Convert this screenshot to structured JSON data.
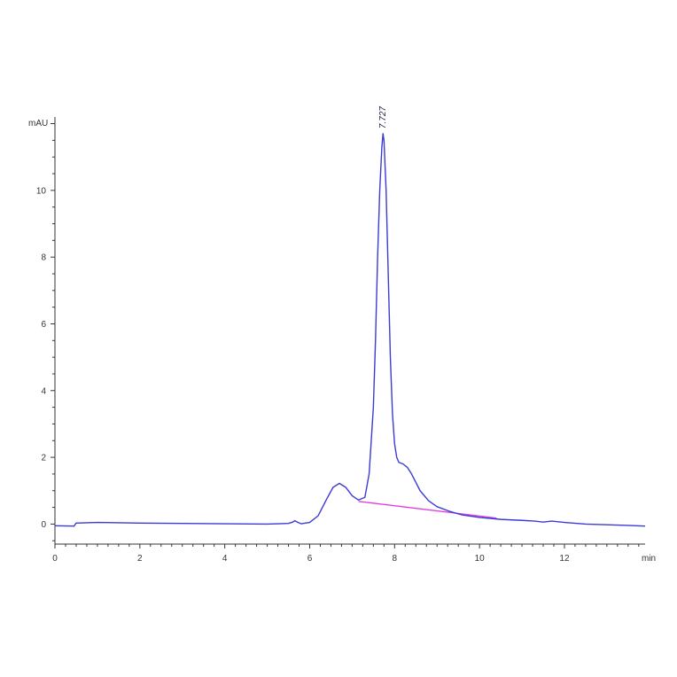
{
  "chart_data": {
    "type": "line",
    "xlabel": "min",
    "ylabel": "mAU",
    "xlim": [
      0,
      13.9
    ],
    "ylim": [
      -0.6,
      12.2
    ],
    "x_ticks": [
      0,
      2,
      4,
      6,
      8,
      10,
      12
    ],
    "y_ticks": [
      0,
      2,
      4,
      6,
      8,
      10
    ],
    "grid": false,
    "peak_annotation": {
      "label": "7.727",
      "x": 7.727,
      "y": 11.8
    },
    "series": [
      {
        "color": "#3b3bd6",
        "x": [
          0,
          0.45,
          0.5,
          1,
          2,
          3,
          4,
          5,
          5.5,
          5.6,
          5.65,
          5.72,
          5.8,
          6,
          6.2,
          6.4,
          6.55,
          6.7,
          6.85,
          7.0,
          7.15,
          7.3,
          7.4,
          7.5,
          7.55,
          7.6,
          7.65,
          7.7,
          7.727,
          7.75,
          7.8,
          7.85,
          7.9,
          7.95,
          8.0,
          8.05,
          8.1,
          8.2,
          8.3,
          8.4,
          8.5,
          8.6,
          8.8,
          9.0,
          9.3,
          9.6,
          10.0,
          10.5,
          11.0,
          11.3,
          11.5,
          11.7,
          12.0,
          12.5,
          13.0,
          13.5,
          13.9
        ],
        "y": [
          -0.05,
          -0.06,
          0.03,
          0.05,
          0.03,
          0.02,
          0.01,
          0.0,
          0.02,
          0.06,
          0.1,
          0.05,
          0.01,
          0.05,
          0.25,
          0.75,
          1.1,
          1.22,
          1.1,
          0.85,
          0.72,
          0.8,
          1.5,
          3.5,
          5.5,
          8.0,
          10.0,
          11.3,
          11.7,
          11.5,
          10.0,
          7.5,
          5.0,
          3.3,
          2.4,
          2.0,
          1.85,
          1.8,
          1.7,
          1.5,
          1.25,
          1.0,
          0.7,
          0.52,
          0.38,
          0.27,
          0.2,
          0.14,
          0.11,
          0.09,
          0.06,
          0.09,
          0.05,
          0.0,
          -0.02,
          -0.04,
          -0.06
        ]
      }
    ],
    "baseline": {
      "color": "#e040e0",
      "x": [
        7.15,
        10.4
      ],
      "y": [
        0.68,
        0.18
      ]
    }
  }
}
